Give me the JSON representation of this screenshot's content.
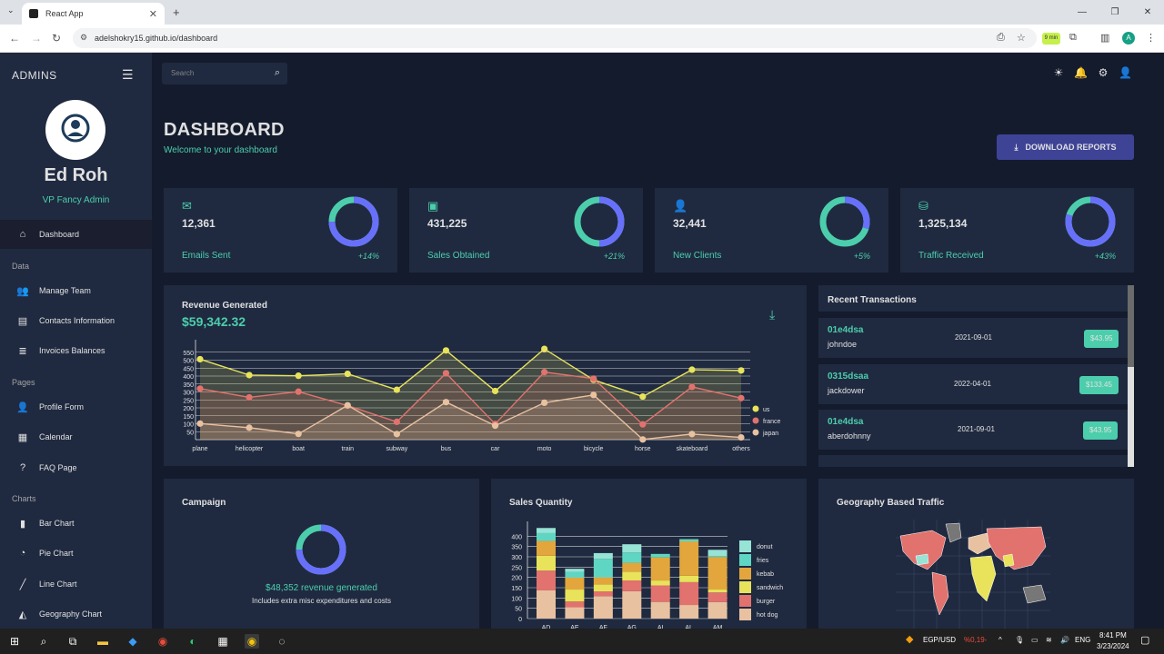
{
  "browser": {
    "tab_title": "React App",
    "url": "adelshokry15.github.io/dashboard",
    "profile_initial": "A",
    "extension_badge": "9 min"
  },
  "sidebar": {
    "brand": "ADMINS",
    "user_name": "Ed Roh",
    "user_role": "VP Fancy Admin",
    "items": [
      {
        "label": "Dashboard",
        "icon": "home-icon",
        "active": true
      },
      {
        "section": "Data"
      },
      {
        "label": "Manage Team",
        "icon": "people-icon"
      },
      {
        "label": "Contacts Information",
        "icon": "contacts-icon"
      },
      {
        "label": "Invoices Balances",
        "icon": "receipt-icon"
      },
      {
        "section": "Pages"
      },
      {
        "label": "Profile Form",
        "icon": "person-icon"
      },
      {
        "label": "Calendar",
        "icon": "calendar-icon"
      },
      {
        "label": "FAQ Page",
        "icon": "help-icon"
      },
      {
        "section": "Charts"
      },
      {
        "label": "Bar Chart",
        "icon": "bar-chart-icon"
      },
      {
        "label": "Pie Chart",
        "icon": "pie-chart-icon"
      },
      {
        "label": "Line Chart",
        "icon": "line-chart-icon"
      },
      {
        "label": "Geography Chart",
        "icon": "map-icon"
      }
    ]
  },
  "topbar": {
    "search_placeholder": "Search"
  },
  "header": {
    "title": "DASHBOARD",
    "subtitle": "Welcome to your dashboard",
    "download_label": "DOWNLOAD REPORTS"
  },
  "stats": [
    {
      "value": "12,361",
      "label": "Emails Sent",
      "increase": "+14%",
      "progress": 0.75,
      "icon": "email-icon"
    },
    {
      "value": "431,225",
      "label": "Sales Obtained",
      "increase": "+21%",
      "progress": 0.5,
      "icon": "point-of-sale-icon"
    },
    {
      "value": "32,441",
      "label": "New Clients",
      "increase": "+5%",
      "progress": 0.3,
      "icon": "person-add-icon"
    },
    {
      "value": "1,325,134",
      "label": "Traffic Received",
      "increase": "+43%",
      "progress": 0.8,
      "icon": "traffic-icon"
    }
  ],
  "revenue": {
    "title": "Revenue Generated",
    "amount": "$59,342.32"
  },
  "transactions": {
    "title": "Recent Transactions",
    "rows": [
      {
        "txId": "01e4dsa",
        "user": "johndoe",
        "date": "2021-09-01",
        "cost": "$43.95"
      },
      {
        "txId": "0315dsaa",
        "user": "jackdower",
        "date": "2022-04-01",
        "cost": "$133.45"
      },
      {
        "txId": "01e4dsa",
        "user": "aberdohnny",
        "date": "2021-09-01",
        "cost": "$43.95"
      }
    ]
  },
  "campaign": {
    "title": "Campaign",
    "revenue_text": "$48,352 revenue generated",
    "note": "Includes extra misc expenditures and costs",
    "progress": 0.75
  },
  "sales": {
    "title": "Sales Quantity"
  },
  "geo": {
    "title": "Geography Based Traffic"
  },
  "taskbar": {
    "currency": "EGP/USD",
    "currency_change": "%0,19-",
    "lang": "ENG",
    "time": "8:41 PM",
    "date": "3/23/2024"
  },
  "chart_data": [
    {
      "type": "line",
      "categories": [
        "plane",
        "helicopter",
        "boat",
        "train",
        "subway",
        "bus",
        "car",
        "moto",
        "bicycle",
        "horse",
        "skateboard",
        "others"
      ],
      "ylim": [
        0,
        600
      ],
      "yticks": [
        50,
        100,
        150,
        200,
        250,
        300,
        350,
        400,
        450,
        500,
        550
      ],
      "legend": "right",
      "series": [
        {
          "name": "us",
          "color": "#e8e35a",
          "values": [
            506,
            406,
            402,
            414,
            314,
            561,
            306,
            571,
            376,
            271,
            440,
            435
          ]
        },
        {
          "name": "france",
          "color": "#e2726e",
          "values": [
            321,
            266,
            302,
            214,
            112,
            418,
            99,
            425,
            384,
            96,
            332,
            261
          ]
        },
        {
          "name": "japan",
          "color": "#e8c1a0",
          "values": [
            101,
            75,
            36,
            216,
            35,
            236,
            88,
            232,
            281,
            1,
            35,
            14
          ]
        }
      ]
    },
    {
      "type": "bar",
      "stacked": true,
      "categories": [
        "AD",
        "AE",
        "AF",
        "AG",
        "AI",
        "AL",
        "AM"
      ],
      "ylim": [
        0,
        450
      ],
      "yticks": [
        0,
        50,
        100,
        150,
        200,
        250,
        300,
        350,
        400
      ],
      "legend": "right",
      "series": [
        {
          "name": "hot dog",
          "color": "#e8c1a0",
          "values": [
            137,
            55,
            109,
            133,
            81,
            66,
            80
          ]
        },
        {
          "name": "burger",
          "color": "#e2726e",
          "values": [
            96,
            28,
            23,
            52,
            80,
            111,
            47
          ]
        },
        {
          "name": "sandwich",
          "color": "#e8e35a",
          "values": [
            72,
            58,
            34,
            43,
            24,
            31,
            14
          ]
        },
        {
          "name": "kebab",
          "color": "#e2a63c",
          "values": [
            72,
            58,
            34,
            43,
            112,
            167,
            158
          ]
        },
        {
          "name": "fries",
          "color": "#5fd6c3",
          "values": [
            38,
            28,
            90,
            50,
            17,
            11,
            5
          ]
        },
        {
          "name": "donut",
          "color": "#97e3d5",
          "values": [
            25,
            15,
            28,
            40,
            0,
            0,
            30
          ]
        }
      ]
    }
  ]
}
